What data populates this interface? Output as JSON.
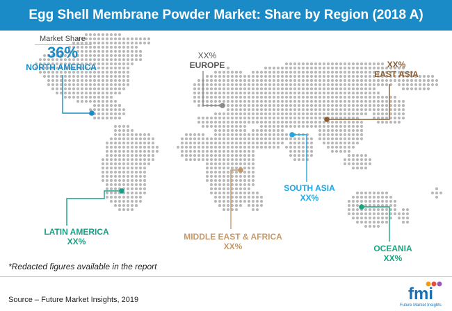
{
  "title": "Egg Shell Membrane Powder Market: Share by Region (2018 A)",
  "chart_data": {
    "type": "map",
    "metric": "Market Share",
    "regions": [
      {
        "name": "NORTH AMERICA",
        "value": "36%",
        "color": "#1b8bc8"
      },
      {
        "name": "EUROPE",
        "value": "XX%",
        "color": "#8a8a8a"
      },
      {
        "name": "EAST ASIA",
        "value": "XX%",
        "color": "#8b5e34"
      },
      {
        "name": "SOUTH ASIA",
        "value": "XX%",
        "color": "#1ea7e4"
      },
      {
        "name": "LATIN AMERICA",
        "value": "XX%",
        "color": "#16a085"
      },
      {
        "name": "MIDDLE EAST & AFRICA",
        "value": "XX%",
        "color": "#c49a6c"
      },
      {
        "name": "OCEANIA",
        "value": "XX%",
        "color": "#1aa580"
      }
    ]
  },
  "note": "*Redacted figures available in the report",
  "source": "Source – Future Market Insights, 2019",
  "logo": {
    "text": "fmi",
    "tagline": "Future Market Insights"
  }
}
